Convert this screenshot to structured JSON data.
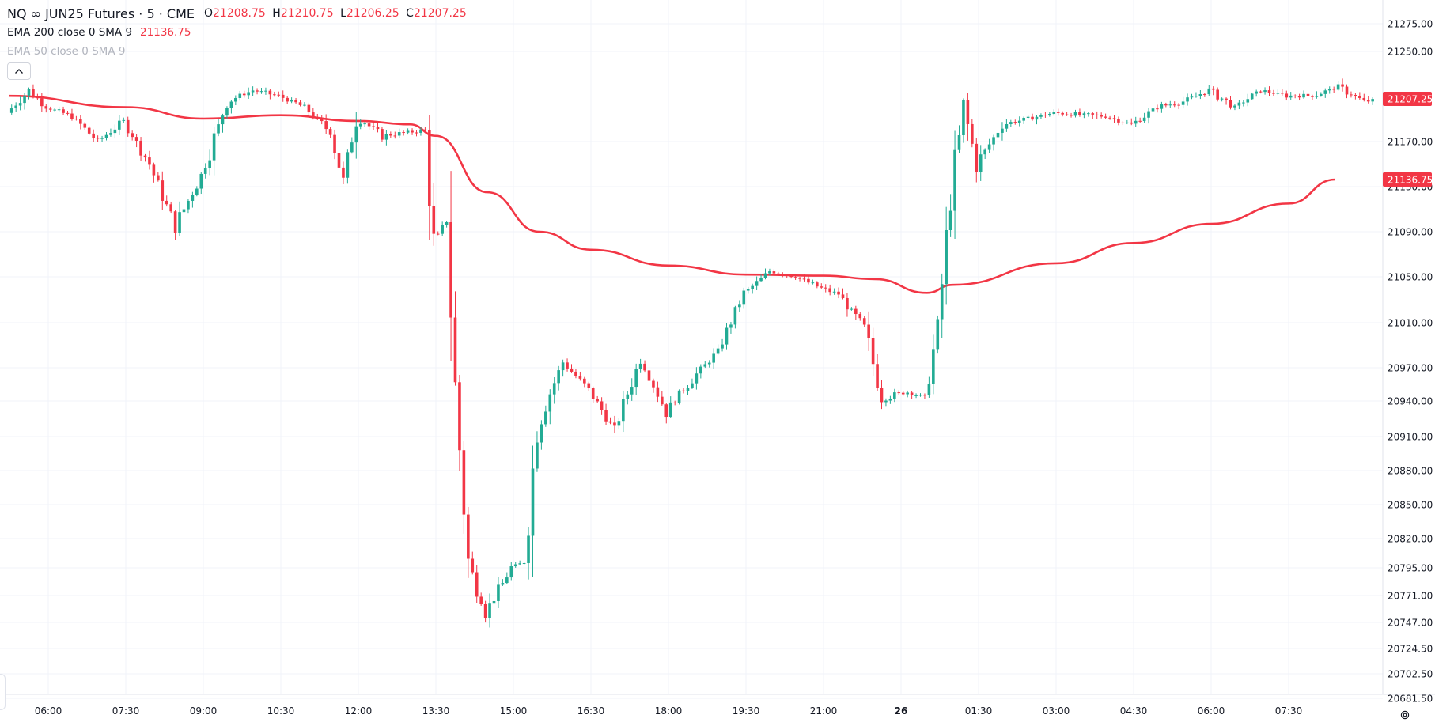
{
  "legend": {
    "symbol": "NQ",
    "loop_glyph": "∞",
    "contract": "JUN25 Futures",
    "interval": "5",
    "exchange": "CME",
    "title_text": "NQ ∞ JUN25 Futures · 5 · CME",
    "ohlc": {
      "open_label": "O",
      "open": "21208.75",
      "high_label": "H",
      "high": "21210.75",
      "low_label": "L",
      "low": "21206.25",
      "close_label": "C",
      "close": "21207.25"
    },
    "indicators": [
      {
        "name": "EMA 200 close 0 SMA 9",
        "value": "21136.75",
        "visible": true
      },
      {
        "name": "EMA 50 close 0 SMA 9",
        "value": "",
        "visible": false
      }
    ],
    "collapse_icon": "chevron-up-icon"
  },
  "colors": {
    "up": "#22ab94",
    "down": "#f23645",
    "ema": "#f23645",
    "grid": "#f0f3fa",
    "axis_text": "#131722",
    "price_tag_bg": "#f23645"
  },
  "price_axis": {
    "ticks": [
      "21275.00",
      "21250.00",
      "21170.00",
      "21130.00",
      "21090.00",
      "21050.00",
      "21010.00",
      "20970.00",
      "20940.00",
      "20910.00",
      "20880.00",
      "20850.00",
      "20820.00",
      "20795.00",
      "20771.00",
      "20747.00",
      "20724.50",
      "20702.50",
      "20681.50"
    ],
    "last_price_tag": "21207.25",
    "ema_tag": "21136.75"
  },
  "time_axis": {
    "labels": [
      {
        "text": "06:00",
        "bold": false
      },
      {
        "text": "07:30",
        "bold": false
      },
      {
        "text": "09:00",
        "bold": false
      },
      {
        "text": "10:30",
        "bold": false
      },
      {
        "text": "12:00",
        "bold": false
      },
      {
        "text": "13:30",
        "bold": false
      },
      {
        "text": "15:00",
        "bold": false
      },
      {
        "text": "16:30",
        "bold": false
      },
      {
        "text": "18:00",
        "bold": false
      },
      {
        "text": "19:30",
        "bold": false
      },
      {
        "text": "21:00",
        "bold": false
      },
      {
        "text": "26",
        "bold": true
      },
      {
        "text": "01:30",
        "bold": false
      },
      {
        "text": "03:00",
        "bold": false
      },
      {
        "text": "04:30",
        "bold": false
      },
      {
        "text": "06:00",
        "bold": false
      },
      {
        "text": "07:30",
        "bold": false
      }
    ]
  },
  "chart_data": {
    "type": "candlestick",
    "symbol": "NQ JUN25 Futures",
    "interval_minutes": 5,
    "price_range": [
      20681.5,
      21275
    ],
    "price_path": [
      [
        "05:15",
        21195
      ],
      [
        "05:40",
        21215
      ],
      [
        "06:00",
        21200
      ],
      [
        "06:30",
        21192
      ],
      [
        "07:00",
        21170
      ],
      [
        "07:30",
        21188
      ],
      [
        "08:00",
        21150
      ],
      [
        "08:30",
        21095
      ],
      [
        "09:00",
        21140
      ],
      [
        "09:30",
        21205
      ],
      [
        "10:00",
        21215
      ],
      [
        "10:30",
        21210
      ],
      [
        "11:00",
        21200
      ],
      [
        "11:30",
        21178
      ],
      [
        "11:45",
        21135
      ],
      [
        "12:00",
        21192
      ],
      [
        "12:30",
        21175
      ],
      [
        "13:20",
        21180
      ],
      [
        "13:30",
        21080
      ],
      [
        "13:45",
        21100
      ],
      [
        "13:55",
        20950
      ],
      [
        "14:10",
        20800
      ],
      [
        "14:30",
        20755
      ],
      [
        "15:00",
        20795
      ],
      [
        "15:15",
        20800
      ],
      [
        "15:30",
        20920
      ],
      [
        "16:00",
        20975
      ],
      [
        "16:30",
        20950
      ],
      [
        "17:00",
        20915
      ],
      [
        "17:30",
        20978
      ],
      [
        "18:00",
        20930
      ],
      [
        "18:30",
        20960
      ],
      [
        "19:00",
        20985
      ],
      [
        "19:30",
        21035
      ],
      [
        "20:00",
        21055
      ],
      [
        "20:30",
        21050
      ],
      [
        "21:00",
        21040
      ],
      [
        "21:20",
        21035
      ],
      [
        "21:50",
        21005
      ],
      [
        "22:10",
        20943
      ],
      [
        "22:40",
        20948
      ],
      [
        "23:00",
        20943
      ],
      [
        "23:15",
        21005
      ],
      [
        "23:30",
        21120
      ],
      [
        "23:45",
        21200
      ],
      [
        "00:00",
        21150
      ],
      [
        "00:30",
        21185
      ],
      [
        "01:30",
        21195
      ],
      [
        "02:30",
        21192
      ],
      [
        "03:00",
        21185
      ],
      [
        "03:30",
        21200
      ],
      [
        "04:00",
        21205
      ],
      [
        "04:30",
        21215
      ],
      [
        "05:00",
        21200
      ],
      [
        "05:30",
        21215
      ],
      [
        "06:00",
        21210
      ],
      [
        "06:30",
        21210
      ],
      [
        "07:00",
        21218
      ],
      [
        "07:30",
        21205
      ],
      [
        "08:00",
        21207.25
      ]
    ],
    "ema200_path": [
      [
        "05:15",
        21210
      ],
      [
        "07:30",
        21200
      ],
      [
        "09:00",
        21190
      ],
      [
        "10:30",
        21193
      ],
      [
        "12:00",
        21188
      ],
      [
        "13:00",
        21185
      ],
      [
        "13:30",
        21175
      ],
      [
        "14:30",
        21125
      ],
      [
        "15:30",
        21090
      ],
      [
        "16:30",
        21074
      ],
      [
        "18:00",
        21060
      ],
      [
        "19:30",
        21052
      ],
      [
        "21:00",
        21051
      ],
      [
        "22:00",
        21048
      ],
      [
        "23:00",
        21036
      ],
      [
        "23:30",
        21043
      ],
      [
        "01:30",
        21062
      ],
      [
        "03:00",
        21080
      ],
      [
        "04:30",
        21097
      ],
      [
        "06:00",
        21115
      ],
      [
        "08:00",
        21136.75
      ]
    ],
    "last_close": 21207.25,
    "ema_value": 21136.75,
    "grid": true
  }
}
